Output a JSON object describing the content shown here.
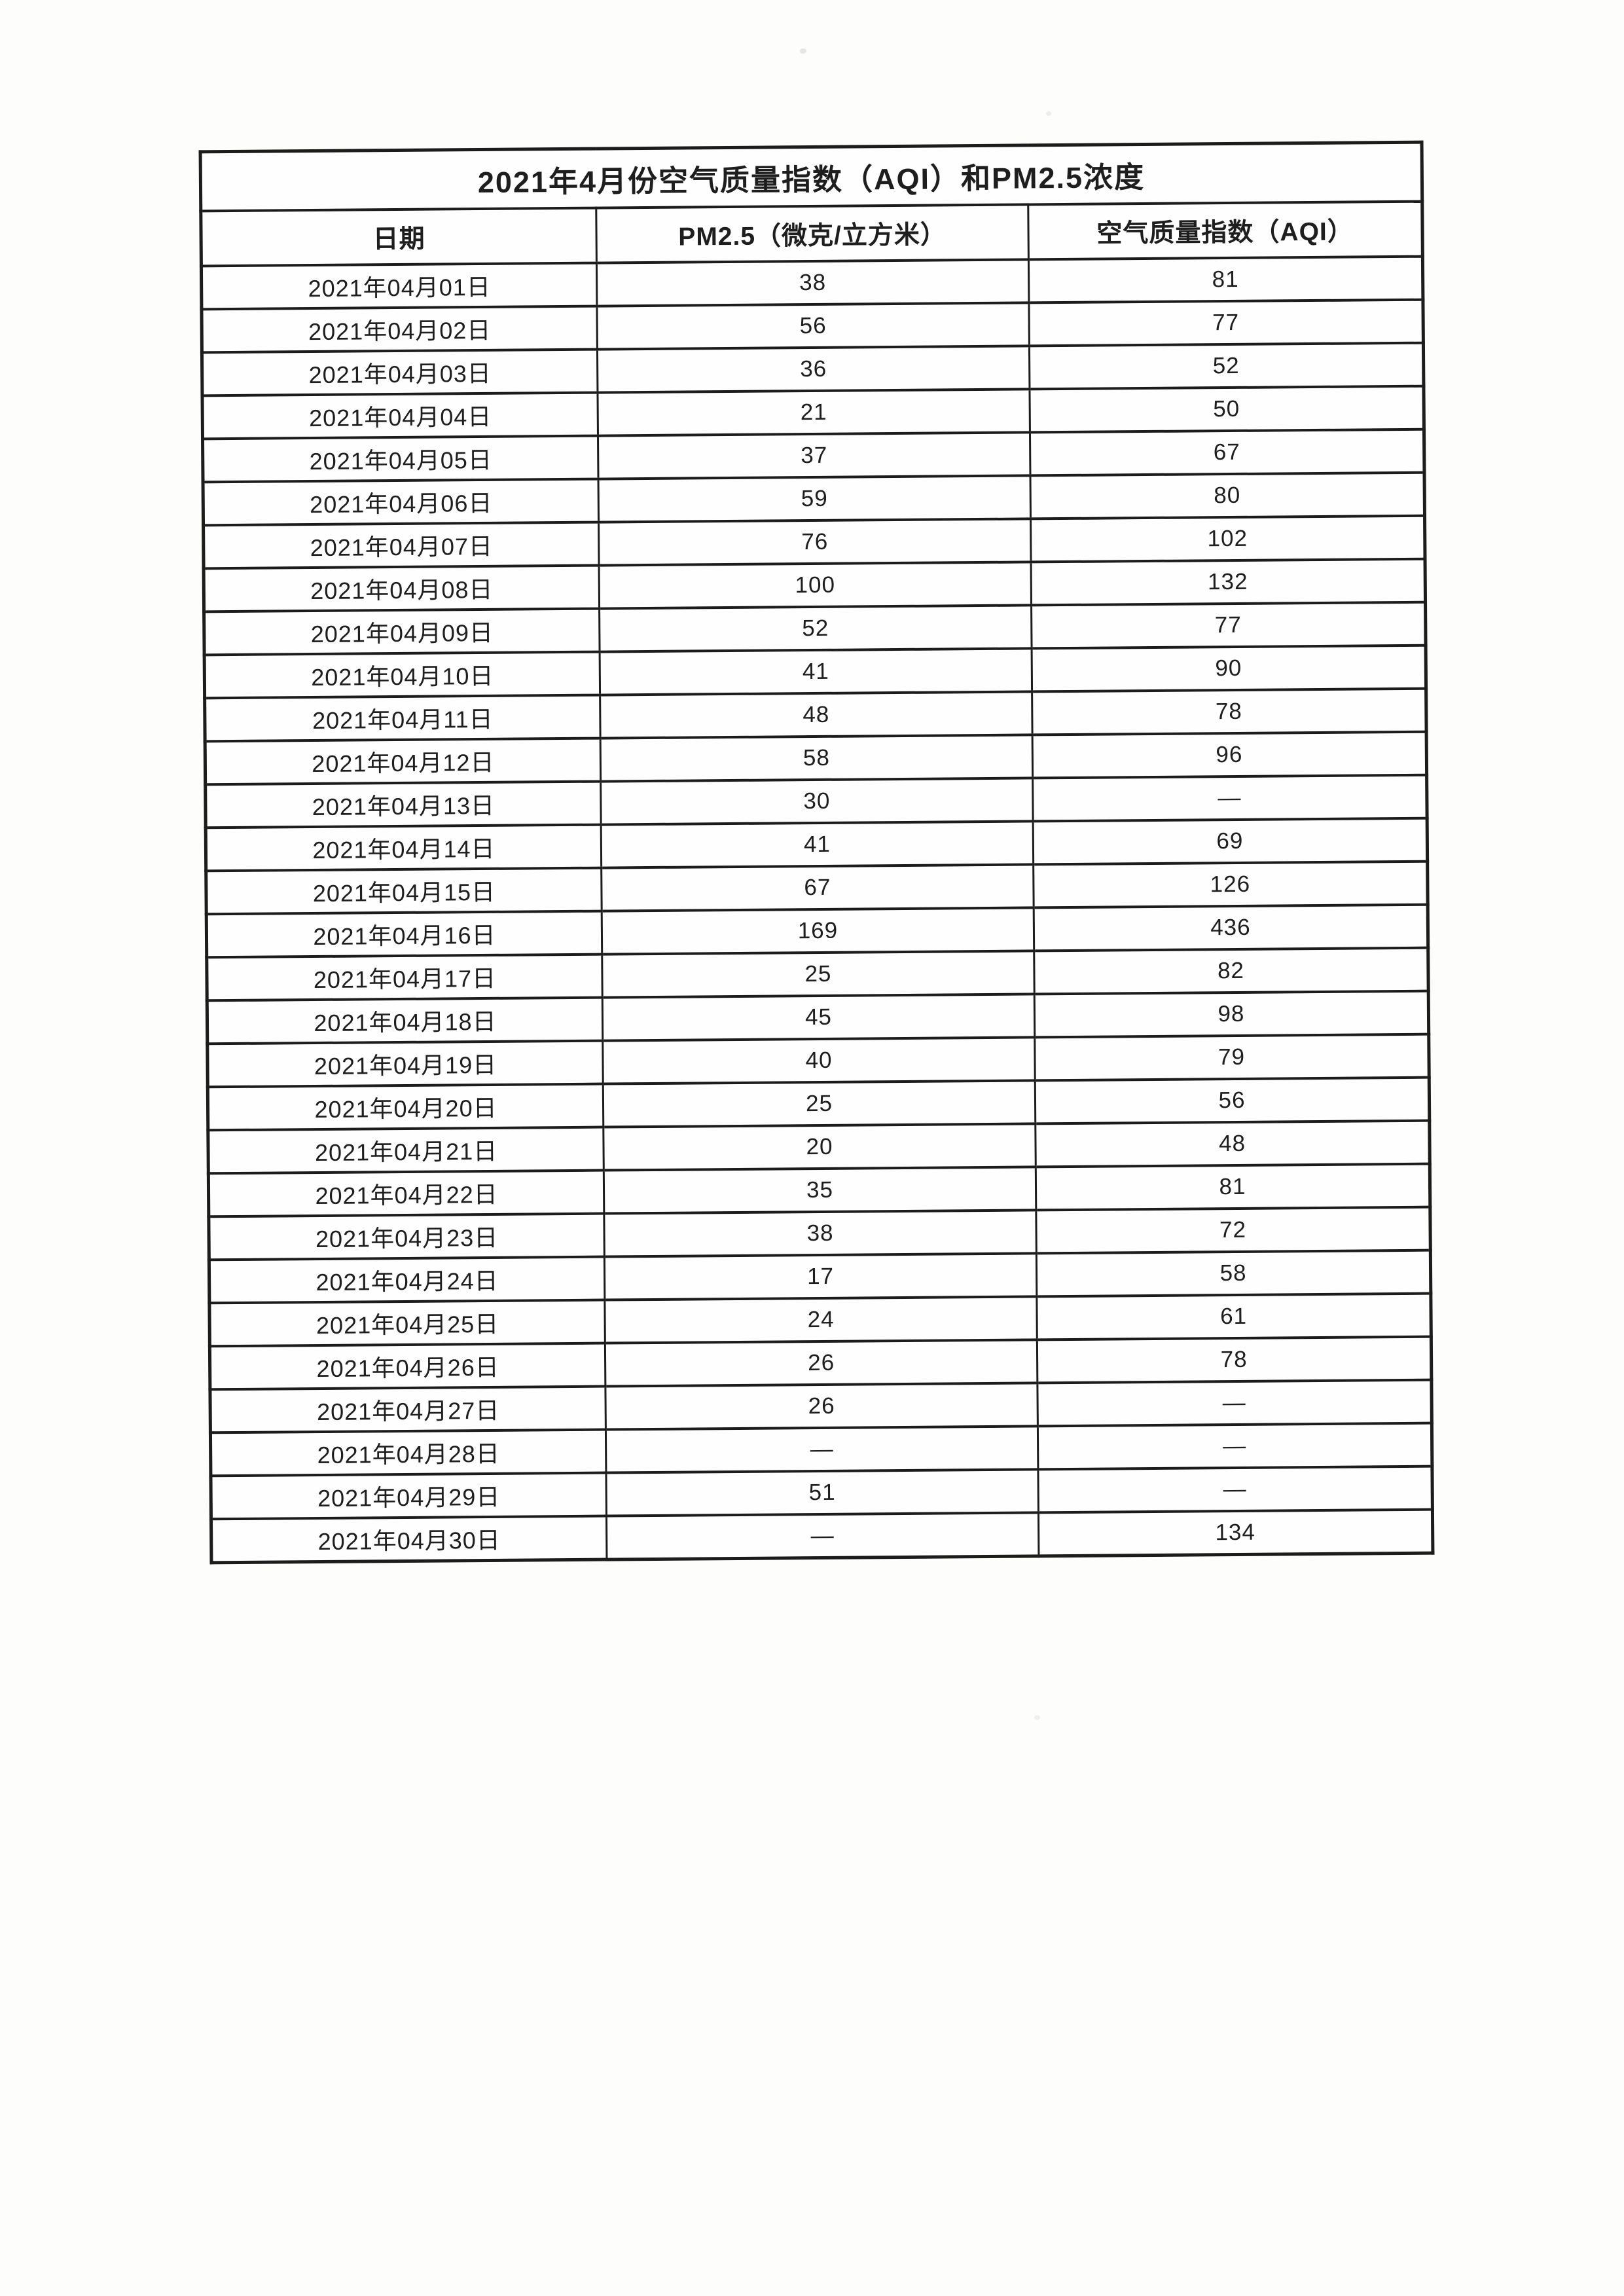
{
  "colors": {
    "ink": "#1e1e1e",
    "paper": "#fdfdfc",
    "border": "#1c1c1c"
  },
  "table": {
    "title": "2021年4月份空气质量指数（AQI）和PM2.5浓度",
    "columns": [
      "日期",
      "PM2.5（微克/立方米）",
      "空气质量指数（AQI）"
    ],
    "rows": [
      {
        "date": "2021年04月01日",
        "pm25": "38",
        "aqi": "81"
      },
      {
        "date": "2021年04月02日",
        "pm25": "56",
        "aqi": "77"
      },
      {
        "date": "2021年04月03日",
        "pm25": "36",
        "aqi": "52"
      },
      {
        "date": "2021年04月04日",
        "pm25": "21",
        "aqi": "50"
      },
      {
        "date": "2021年04月05日",
        "pm25": "37",
        "aqi": "67"
      },
      {
        "date": "2021年04月06日",
        "pm25": "59",
        "aqi": "80"
      },
      {
        "date": "2021年04月07日",
        "pm25": "76",
        "aqi": "102"
      },
      {
        "date": "2021年04月08日",
        "pm25": "100",
        "aqi": "132"
      },
      {
        "date": "2021年04月09日",
        "pm25": "52",
        "aqi": "77"
      },
      {
        "date": "2021年04月10日",
        "pm25": "41",
        "aqi": "90"
      },
      {
        "date": "2021年04月11日",
        "pm25": "48",
        "aqi": "78"
      },
      {
        "date": "2021年04月12日",
        "pm25": "58",
        "aqi": "96"
      },
      {
        "date": "2021年04月13日",
        "pm25": "30",
        "aqi": "—"
      },
      {
        "date": "2021年04月14日",
        "pm25": "41",
        "aqi": "69"
      },
      {
        "date": "2021年04月15日",
        "pm25": "67",
        "aqi": "126"
      },
      {
        "date": "2021年04月16日",
        "pm25": "169",
        "aqi": "436"
      },
      {
        "date": "2021年04月17日",
        "pm25": "25",
        "aqi": "82"
      },
      {
        "date": "2021年04月18日",
        "pm25": "45",
        "aqi": "98"
      },
      {
        "date": "2021年04月19日",
        "pm25": "40",
        "aqi": "79"
      },
      {
        "date": "2021年04月20日",
        "pm25": "25",
        "aqi": "56"
      },
      {
        "date": "2021年04月21日",
        "pm25": "20",
        "aqi": "48"
      },
      {
        "date": "2021年04月22日",
        "pm25": "35",
        "aqi": "81"
      },
      {
        "date": "2021年04月23日",
        "pm25": "38",
        "aqi": "72"
      },
      {
        "date": "2021年04月24日",
        "pm25": "17",
        "aqi": "58"
      },
      {
        "date": "2021年04月25日",
        "pm25": "24",
        "aqi": "61"
      },
      {
        "date": "2021年04月26日",
        "pm25": "26",
        "aqi": "78"
      },
      {
        "date": "2021年04月27日",
        "pm25": "26",
        "aqi": "—"
      },
      {
        "date": "2021年04月28日",
        "pm25": "—",
        "aqi": "—"
      },
      {
        "date": "2021年04月29日",
        "pm25": "51",
        "aqi": "—"
      },
      {
        "date": "2021年04月30日",
        "pm25": "—",
        "aqi": "134"
      }
    ]
  }
}
